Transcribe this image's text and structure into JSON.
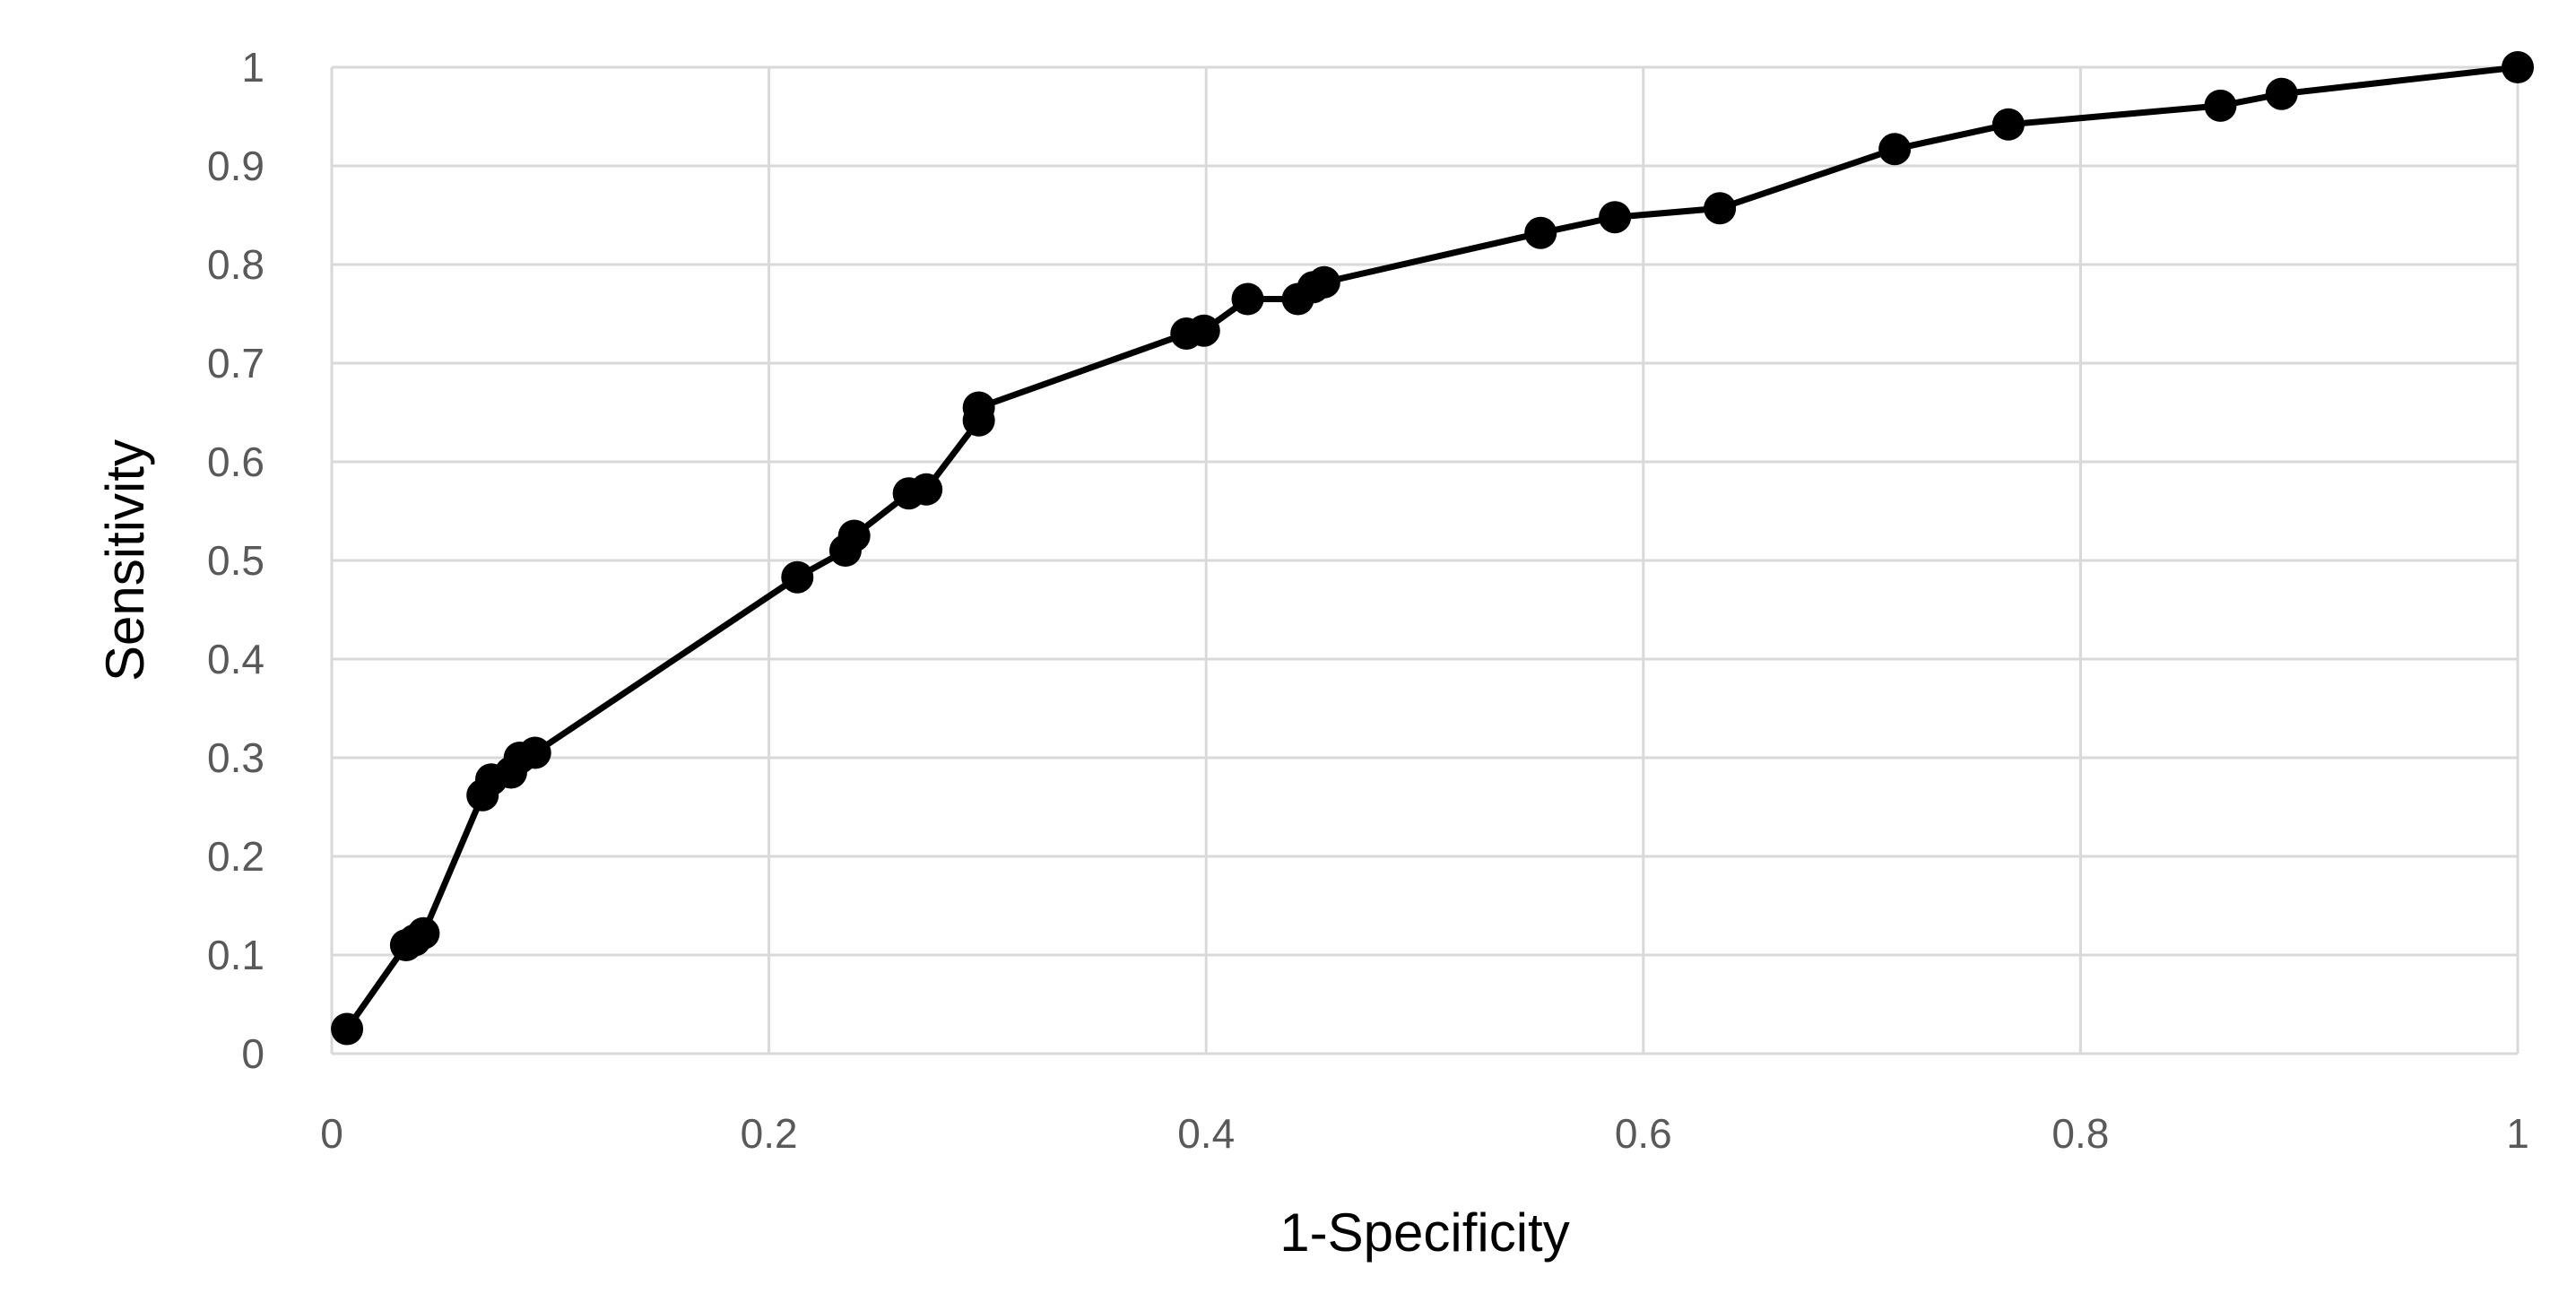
{
  "chart_data": {
    "type": "line",
    "title": "",
    "xlabel": "1-Specificity",
    "ylabel": "Sensitivity",
    "xlim": [
      0,
      1
    ],
    "ylim": [
      0,
      1
    ],
    "x_ticks": [
      0,
      0.2,
      0.4,
      0.6,
      0.8,
      1
    ],
    "x_tick_labels": [
      "0",
      "0.2",
      "0.4",
      "0.6",
      "0.8",
      "1"
    ],
    "y_ticks": [
      0,
      0.1,
      0.2,
      0.3,
      0.4,
      0.5,
      0.6,
      0.7,
      0.8,
      0.9,
      1
    ],
    "y_tick_labels": [
      "0",
      "0.1",
      "0.2",
      "0.3",
      "0.4",
      "0.5",
      "0.6",
      "0.7",
      "0.8",
      "0.9",
      "1"
    ],
    "grid": true,
    "legend": "none",
    "series_color": "#000000",
    "marker": "filled-circle",
    "series": [
      {
        "points": [
          [
            0.007,
            0.025
          ],
          [
            0.034,
            0.11
          ],
          [
            0.038,
            0.115
          ],
          [
            0.042,
            0.122
          ],
          [
            0.069,
            0.262
          ],
          [
            0.073,
            0.278
          ],
          [
            0.082,
            0.285
          ],
          [
            0.086,
            0.3
          ],
          [
            0.093,
            0.305
          ],
          [
            0.213,
            0.483
          ],
          [
            0.235,
            0.51
          ],
          [
            0.239,
            0.525
          ],
          [
            0.264,
            0.568
          ],
          [
            0.272,
            0.572
          ],
          [
            0.296,
            0.642
          ],
          [
            0.296,
            0.655
          ],
          [
            0.391,
            0.73
          ],
          [
            0.399,
            0.733
          ],
          [
            0.419,
            0.765
          ],
          [
            0.442,
            0.765
          ],
          [
            0.449,
            0.777
          ],
          [
            0.454,
            0.782
          ],
          [
            0.553,
            0.832
          ],
          [
            0.587,
            0.848
          ],
          [
            0.635,
            0.857
          ],
          [
            0.715,
            0.917
          ],
          [
            0.767,
            0.942
          ],
          [
            0.864,
            0.961
          ],
          [
            0.892,
            0.973
          ],
          [
            1.0,
            1.0
          ]
        ]
      }
    ]
  }
}
